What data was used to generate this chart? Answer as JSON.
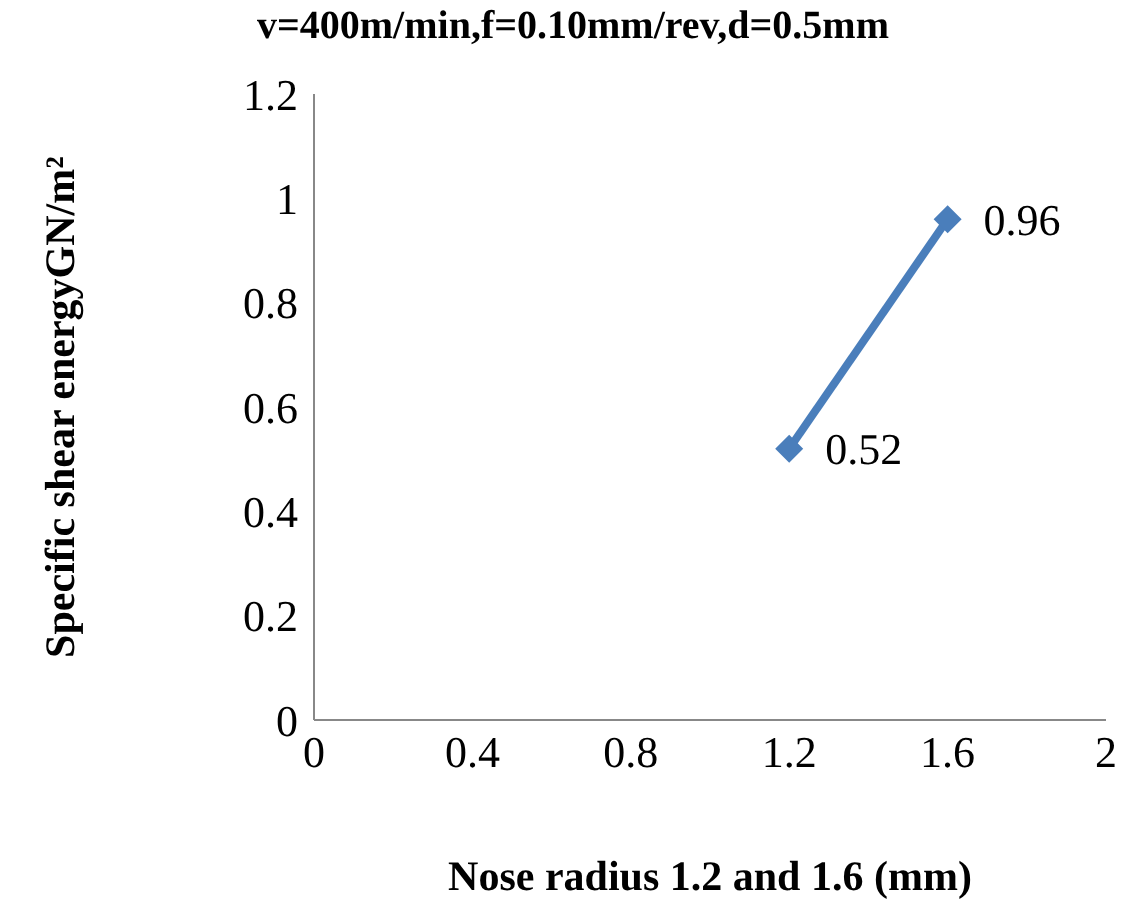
{
  "chart_data": {
    "type": "line",
    "title": "v=400m/min,f=0.10mm/rev,d=0.5mm",
    "xlabel": "Nose radius 1.2 and 1.6 (mm)",
    "ylabel": "Specific shear energyGN/m²",
    "x": [
      1.2,
      1.6
    ],
    "series": [
      {
        "color": "#4a7ebb",
        "values": [
          0.52,
          0.96
        ]
      }
    ],
    "xlim": [
      0,
      2
    ],
    "xticks": [
      0,
      0.4,
      0.8,
      1.2,
      1.6,
      2
    ],
    "ylim": [
      0,
      1.2
    ],
    "yticks": [
      0,
      0.2,
      0.4,
      0.6,
      0.8,
      1,
      1.2
    ],
    "grid": false,
    "legend": false,
    "marker": "diamond",
    "line_style": "solid",
    "data_labels": true
  }
}
